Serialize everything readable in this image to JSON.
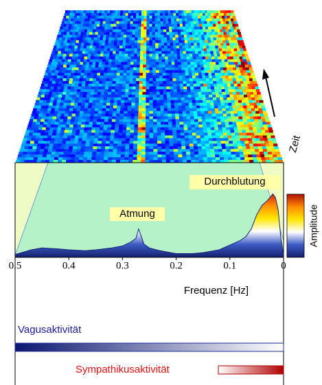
{
  "chart_data": {
    "type": "area",
    "xlabel": "Frequenz [Hz]",
    "xlim": [
      0.5,
      0
    ],
    "xticks": [
      0.5,
      0.4,
      0.3,
      0.2,
      0.1,
      0
    ],
    "ylim": [
      0,
      1
    ],
    "x": [
      0.5,
      0.47,
      0.45,
      0.42,
      0.4,
      0.37,
      0.35,
      0.32,
      0.3,
      0.285,
      0.275,
      0.27,
      0.265,
      0.26,
      0.25,
      0.23,
      0.2,
      0.17,
      0.15,
      0.12,
      0.1,
      0.08,
      0.07,
      0.06,
      0.05,
      0.04,
      0.03,
      0.02,
      0.015,
      0.01,
      0.005,
      0
    ],
    "values": [
      0.03,
      0.08,
      0.1,
      0.09,
      0.08,
      0.07,
      0.08,
      0.1,
      0.12,
      0.16,
      0.2,
      0.3,
      0.22,
      0.14,
      0.1,
      0.07,
      0.04,
      0.04,
      0.05,
      0.08,
      0.13,
      0.18,
      0.22,
      0.3,
      0.45,
      0.55,
      0.6,
      0.67,
      0.63,
      0.5,
      0.2,
      0.03
    ],
    "color": "#1a237e",
    "annotations": [
      "Atmung",
      "Durchblutung"
    ],
    "time_label": "Zeit",
    "colorbar_label": "Amplitude",
    "bars": [
      "Vagusaktivität",
      "Sympathikusaktivität"
    ]
  }
}
